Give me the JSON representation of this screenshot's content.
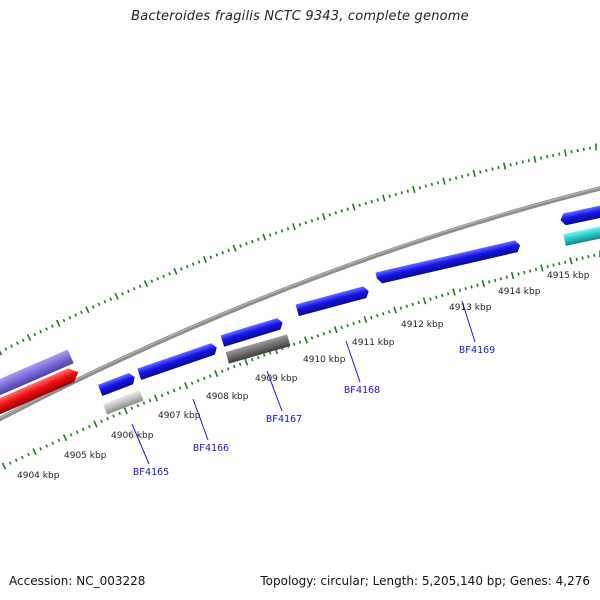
{
  "title": "Bacteroides fragilis NCTC 9343, complete genome",
  "footer": {
    "accession": "Accession: NC_003228",
    "topology": "Topology: circular; Length: 5,205,140 bp; Genes: 4,276"
  },
  "colors": {
    "backbone": "#8c8c8c",
    "tick": "#1f7a1f",
    "cds_forward": "#1414e6",
    "cds_reverse": "#1414e6",
    "rna_gray": "#6e6e6e",
    "pseudo_light": "#bdbdbd",
    "purple": "#7a6ad6",
    "red": "#ee1111",
    "cyan": "#22c8c8",
    "label": "#1a1acc"
  },
  "kbp_labels": [
    "4904 kbp",
    "4905 kbp",
    "4906 kbp",
    "4907 kbp",
    "4908 kbp",
    "4909 kbp",
    "4910 kbp",
    "4911 kbp",
    "4912 kbp",
    "4913 kbp",
    "4914 kbp",
    "4915 kbp"
  ],
  "gene_labels": [
    "BF4165",
    "BF4166",
    "BF4167",
    "BF4168",
    "BF4169"
  ]
}
